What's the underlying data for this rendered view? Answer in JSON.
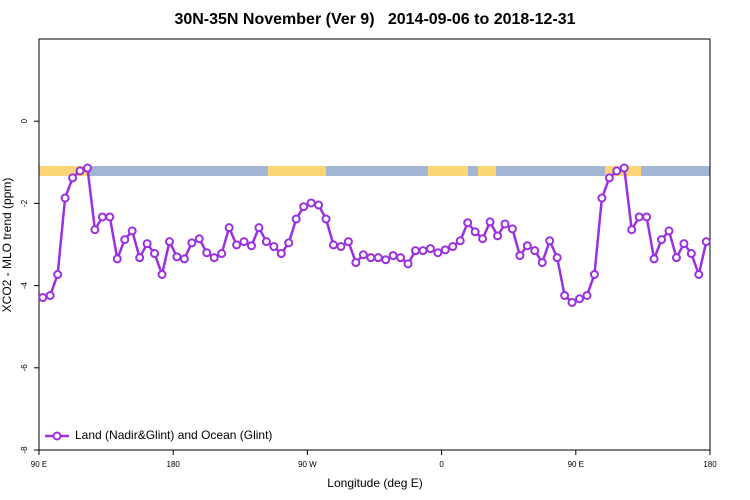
{
  "chart_data": {
    "type": "line",
    "title": "30N-35N November (Ver 9)   2014-09-06 to 2018-12-31",
    "x_label": "Longitude (deg E)",
    "y_label": "XCO2 - MLO trend (ppm)",
    "x": [
      92.5,
      97.5,
      102.5,
      107.5,
      112.5,
      117.5,
      122.5,
      127.5,
      132.5,
      137.5,
      142.5,
      147.5,
      152.5,
      157.5,
      162.5,
      167.5,
      172.5,
      177.5,
      182.5,
      187.5,
      192.5,
      197.5,
      202.5,
      207.5,
      212.5,
      217.5,
      222.5,
      227.5,
      232.5,
      237.5,
      242.5,
      247.5,
      252.5,
      257.5,
      262.5,
      267.5,
      272.5,
      277.5,
      282.5,
      287.5,
      292.5,
      297.5,
      302.5,
      307.5,
      312.5,
      317.5,
      322.5,
      327.5,
      332.5,
      337.5,
      342.5,
      347.5,
      352.5,
      357.5,
      362.5,
      367.5,
      372.5,
      377.5,
      382.5,
      387.5,
      392.5,
      397.5,
      402.5,
      407.5,
      412.5,
      417.5,
      422.5,
      427.5,
      432.5,
      437.5,
      442.5,
      447.5,
      452.5,
      457.5,
      462.5,
      467.5,
      472.5,
      477.5,
      482.5,
      487.5,
      492.5,
      497.5,
      502.5,
      507.5,
      512.5,
      517.5,
      522.5,
      527.5,
      532.5,
      537.5
    ],
    "series": [
      {
        "name": "Land (Nadir&Glint) and Ocean (Glint)",
        "color": "#9b30e0",
        "values": [
          -4.29,
          -4.24,
          -3.73,
          -1.87,
          -1.38,
          -1.21,
          -1.14,
          -2.64,
          -2.33,
          -2.33,
          -3.35,
          -2.88,
          -2.67,
          -3.32,
          -2.98,
          -3.22,
          -3.73,
          -2.93,
          -3.3,
          -3.35,
          -2.96,
          -2.86,
          -3.2,
          -3.32,
          -3.22,
          -2.59,
          -3.01,
          -2.93,
          -3.03,
          -2.59,
          -2.93,
          -3.05,
          -3.22,
          -2.96,
          -2.38,
          -2.08,
          -1.99,
          -2.04,
          -2.38,
          -3.01,
          -3.05,
          -2.93,
          -3.44,
          -3.25,
          -3.32,
          -3.32,
          -3.37,
          -3.27,
          -3.32,
          -3.47,
          -3.15,
          -3.15,
          -3.1,
          -3.2,
          -3.13,
          -3.05,
          -2.91,
          -2.47,
          -2.69,
          -2.86,
          -2.45,
          -2.79,
          -2.5,
          -2.62,
          -3.27,
          -3.03,
          -3.15,
          -3.44,
          -2.91,
          -3.32,
          -4.24,
          -4.41,
          -4.32,
          -4.24,
          -3.73,
          -1.87,
          -1.38,
          -1.21,
          -1.14,
          -2.64,
          -2.33,
          -2.33,
          -3.35,
          -2.88,
          -2.67,
          -3.32,
          -2.98,
          -3.22,
          -3.73,
          -2.93
        ]
      }
    ],
    "xlim": [
      90,
      540
    ],
    "xticks": [
      {
        "value": 90,
        "label": "90 E"
      },
      180,
      {
        "value": 270,
        "label": "90 W"
      },
      {
        "value": 360,
        "label": "0"
      },
      {
        "value": 450,
        "label": "90 E"
      },
      {
        "value": 540,
        "label": "180"
      }
    ],
    "ylim": [
      -8,
      2
    ],
    "yticks": [
      -8,
      -6,
      -4,
      -2,
      0
    ],
    "legend": "lower left"
  }
}
